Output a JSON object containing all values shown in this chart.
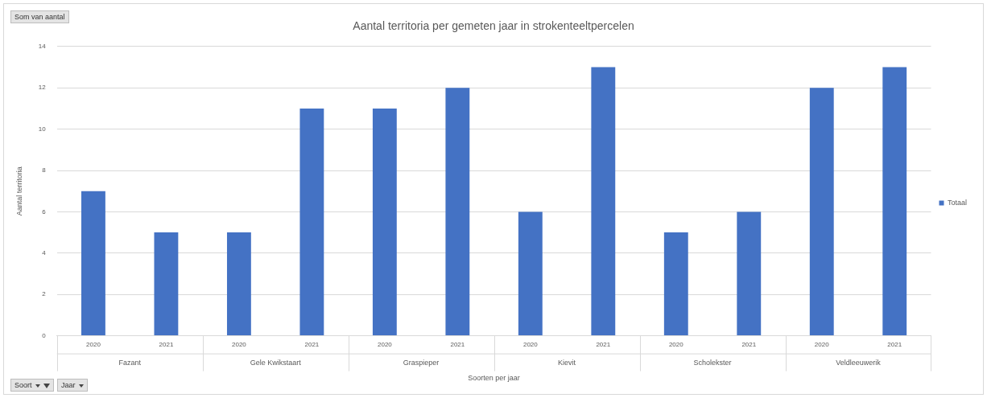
{
  "chart_data": {
    "type": "bar",
    "title": "Aantal territoria per gemeten jaar in strokenteeltpercelen",
    "xlabel": "Soorten per jaar",
    "ylabel": "Aantal territoria",
    "categories": [
      "2020",
      "2021",
      "2020",
      "2021",
      "2020",
      "2021",
      "2020",
      "2021",
      "2020",
      "2021",
      "2020",
      "2021"
    ],
    "series": [
      {
        "name": "Totaal",
        "color": "#4472c4",
        "values": [
          7,
          5,
          5,
          11,
          11,
          12,
          6,
          13,
          5,
          6,
          12,
          13
        ]
      }
    ],
    "ylim": [
      0,
      14
    ],
    "yticks": [
      0,
      2,
      4,
      6,
      8,
      10,
      12,
      14
    ],
    "grid": "y",
    "legend": "right",
    "annotations": [
      "Fazant",
      "Gele Kwikstaart",
      "Graspieper",
      "Kievit",
      "Scholekster",
      "Veldleeuwerik",
      "Som van aantal",
      "Soort",
      "Jaar"
    ]
  }
}
